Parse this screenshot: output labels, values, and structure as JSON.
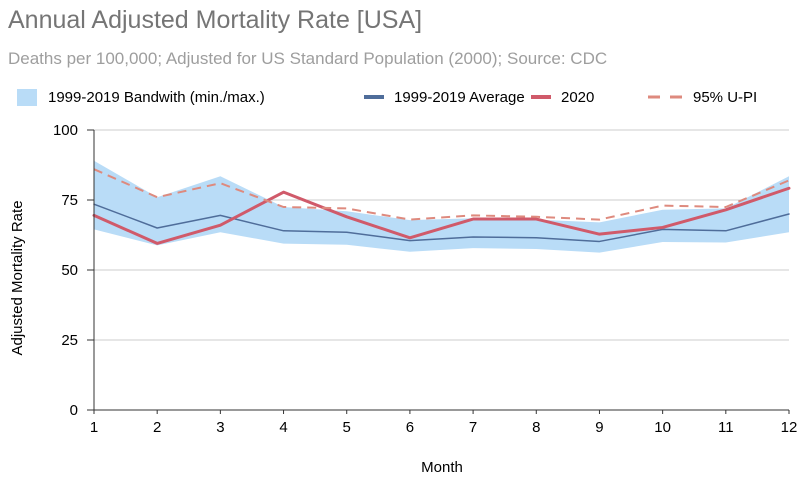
{
  "title": "Annual Adjusted Mortality Rate [USA]",
  "subtitle": "Deaths per 100,000; Adjusted for US Standard Population (2000); Source: CDC",
  "chart_data": {
    "type": "line",
    "xlabel": "Month",
    "ylabel": "Adjusted Mortality Rate",
    "x": [
      1,
      2,
      3,
      4,
      5,
      6,
      7,
      8,
      9,
      10,
      11,
      12
    ],
    "xlim": [
      1,
      12
    ],
    "ylim": [
      0,
      100
    ],
    "yticks": [
      0,
      25,
      50,
      75,
      100
    ],
    "grid": "horizontal",
    "legend": "top",
    "band": {
      "name": "1999-2019 Bandwith (min./max.)",
      "color": "#b9dcf7",
      "min": [
        64.5,
        58.8,
        63.5,
        59.4,
        59.0,
        56.5,
        57.8,
        57.5,
        56.2,
        60.0,
        59.8,
        63.5
      ],
      "max": [
        89.0,
        76.0,
        83.5,
        72.5,
        71.0,
        67.8,
        68.5,
        68.0,
        67.0,
        71.5,
        72.0,
        83.5
      ]
    },
    "series": [
      {
        "name": "1999-2019 Average",
        "color": "#4f6d9a",
        "style": "solid",
        "width": 1.5,
        "values": [
          73.5,
          65.0,
          69.5,
          64.0,
          63.5,
          60.5,
          61.8,
          61.5,
          60.2,
          64.5,
          64.0,
          70.0
        ]
      },
      {
        "name": "2020",
        "color": "#d05a6a",
        "style": "solid",
        "width": 3,
        "values": [
          69.5,
          59.5,
          66.0,
          77.8,
          69.0,
          61.5,
          68.2,
          68.2,
          62.8,
          65.2,
          71.5,
          79.2
        ]
      },
      {
        "name": "95% U-PI",
        "color": "#de8a7e",
        "style": "dashed",
        "width": 2,
        "values": [
          86.0,
          76.0,
          81.0,
          72.5,
          72.0,
          68.0,
          69.5,
          69.0,
          68.0,
          73.0,
          72.5,
          82.0
        ]
      }
    ]
  }
}
